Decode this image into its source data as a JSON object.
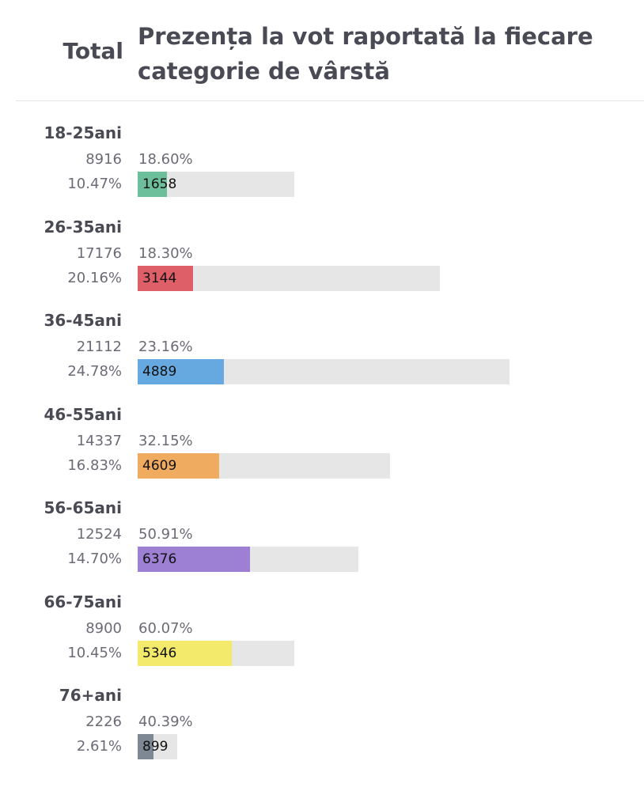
{
  "header": {
    "total_label": "Total",
    "title": "Prezența la vot raportată la fiecare categorie de vârstă"
  },
  "chart_data": {
    "type": "bar",
    "title": "Prezența la vot raportată la fiecare categorie de vârstă",
    "categories": [
      "18-25ani",
      "26-35ani",
      "36-45ani",
      "46-55ani",
      "56-65ani",
      "66-75ani",
      "76+ani"
    ],
    "series": [
      {
        "name": "Total",
        "values": [
          8916,
          17176,
          21112,
          14337,
          12524,
          8900,
          2226
        ]
      },
      {
        "values": [
          1658,
          3144,
          4889,
          4609,
          6376,
          5346,
          899
        ]
      }
    ],
    "total_share_labels": [
      "10.47%",
      "20.16%",
      "24.78%",
      "16.83%",
      "14.70%",
      "10.45%",
      "2.61%"
    ],
    "turnout_labels": [
      "18.60%",
      "18.30%",
      "23.16%",
      "32.15%",
      "50.91%",
      "60.07%",
      "40.39%"
    ],
    "count_labels": [
      "8916",
      "17176",
      "21112",
      "14337",
      "12524",
      "8900",
      "2226"
    ],
    "voted_labels": [
      "1658",
      "3144",
      "4889",
      "4609",
      "6376",
      "5346",
      "899"
    ],
    "colors": [
      "#6dbf9b",
      "#df5f68",
      "#66a8e0",
      "#efab5f",
      "#9d80d3",
      "#f3e96b",
      "#7d8894"
    ],
    "track_color": "#e6e6e6"
  }
}
